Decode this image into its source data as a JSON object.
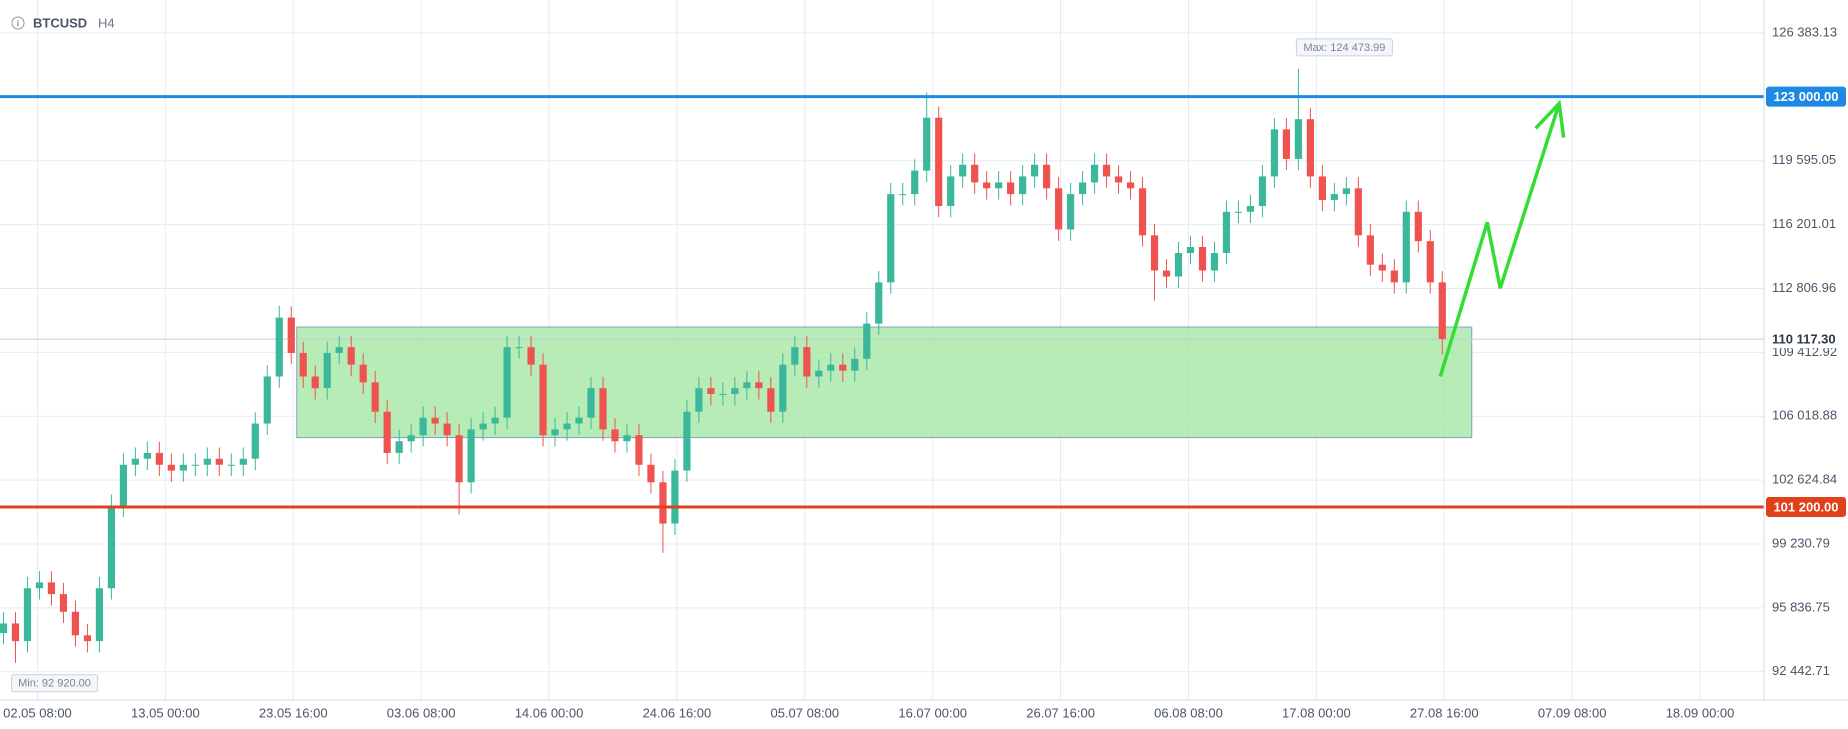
{
  "chart_data": {
    "type": "candlestick",
    "title": "BTCUSD",
    "timeframe": "H4",
    "up_color": "#3bb89b",
    "down_color": "#ef5350",
    "x": [
      "29.04 12:00",
      "30.04 12:00",
      "01.05 12:00",
      "02.05 12:00",
      "03.05 12:00",
      "04.05 12:00",
      "05.05 12:00",
      "06.05 12:00",
      "07.05 12:00",
      "08.05 12:00",
      "09.05 12:00",
      "10.05 12:00",
      "11.05 12:00",
      "12.05 12:00",
      "13.05 12:00",
      "14.05 12:00",
      "15.05 12:00",
      "16.05 12:00",
      "17.05 12:00",
      "18.05 12:00",
      "19.05 12:00",
      "20.05 12:00",
      "21.05 12:00",
      "22.05 12:00",
      "23.05 12:00",
      "24.05 12:00",
      "25.05 12:00",
      "26.05 12:00",
      "27.05 12:00",
      "28.05 12:00",
      "29.05 12:00",
      "30.05 12:00",
      "31.05 12:00",
      "01.06 12:00",
      "02.06 12:00",
      "03.06 12:00",
      "04.06 12:00",
      "05.06 12:00",
      "06.06 12:00",
      "07.06 12:00",
      "08.06 12:00",
      "09.06 12:00",
      "10.06 12:00",
      "11.06 12:00",
      "12.06 12:00",
      "13.06 12:00",
      "14.06 12:00",
      "15.06 12:00",
      "16.06 12:00",
      "17.06 12:00",
      "18.06 12:00",
      "19.06 12:00",
      "20.06 12:00",
      "21.06 12:00",
      "22.06 12:00",
      "23.06 12:00",
      "24.06 12:00",
      "25.06 12:00",
      "26.06 12:00",
      "27.06 12:00",
      "28.06 12:00",
      "29.06 12:00",
      "30.06 12:00",
      "01.07 12:00",
      "02.07 12:00",
      "03.07 12:00",
      "04.07 12:00",
      "05.07 12:00",
      "06.07 12:00",
      "07.07 12:00",
      "08.07 12:00",
      "09.07 12:00",
      "10.07 12:00",
      "11.07 12:00",
      "12.07 12:00",
      "13.07 12:00",
      "14.07 12:00",
      "15.07 12:00",
      "16.07 12:00",
      "17.07 12:00",
      "18.07 12:00",
      "19.07 12:00",
      "20.07 12:00",
      "21.07 12:00",
      "22.07 12:00",
      "23.07 12:00",
      "24.07 12:00",
      "25.07 12:00",
      "26.07 12:00",
      "27.07 12:00",
      "28.07 12:00",
      "29.07 12:00",
      "30.07 12:00",
      "31.07 12:00",
      "01.08 12:00",
      "02.08 12:00",
      "03.08 12:00",
      "04.08 12:00",
      "05.08 12:00",
      "06.08 12:00",
      "07.08 12:00",
      "08.08 12:00",
      "09.08 12:00",
      "10.08 12:00",
      "11.08 12:00",
      "12.08 12:00",
      "13.08 12:00",
      "14.08 12:00",
      "15.08 12:00",
      "16.08 12:00",
      "17.08 12:00",
      "18.08 12:00",
      "19.08 12:00",
      "20.08 12:00",
      "21.08 12:00",
      "22.08 12:00",
      "23.08 12:00",
      "24.08 12:00",
      "25.08 12:00",
      "26.08 12:00",
      "27.08 12:00"
    ],
    "open": [
      94500,
      95010,
      94070,
      96880,
      97190,
      96570,
      95630,
      94380,
      94070,
      96880,
      101260,
      103440,
      103760,
      104070,
      103440,
      103130,
      103440,
      103440,
      103760,
      103440,
      103440,
      103760,
      105630,
      108130,
      111260,
      109380,
      108130,
      107510,
      109380,
      109690,
      108760,
      107820,
      106260,
      104070,
      104690,
      105010,
      105940,
      105630,
      105010,
      102510,
      105320,
      105630,
      105940,
      109690,
      109690,
      108760,
      105010,
      105320,
      105630,
      105940,
      107510,
      105320,
      104690,
      105010,
      103440,
      102510,
      100320,
      103130,
      106260,
      107510,
      107200,
      107200,
      107510,
      107820,
      107510,
      106260,
      108760,
      109690,
      108130,
      108440,
      108760,
      108440,
      109070,
      110940,
      113130,
      117820,
      117820,
      119070,
      121880,
      117190,
      118760,
      119380,
      118440,
      118130,
      118440,
      117820,
      118760,
      119380,
      118130,
      115940,
      117820,
      118440,
      119380,
      118760,
      118440,
      118130,
      115630,
      113760,
      113440,
      114690,
      115010,
      113760,
      114690,
      116880,
      116880,
      117190,
      118760,
      121260,
      119690,
      121800,
      118760,
      117510,
      117820,
      118130,
      115630,
      114070,
      113760,
      113130,
      116880,
      115320,
      113130
    ],
    "high": [
      95610,
      95610,
      97480,
      97790,
      97790,
      97170,
      96230,
      94980,
      97480,
      101860,
      104040,
      104360,
      104670,
      104670,
      104040,
      104040,
      104040,
      104360,
      104360,
      104040,
      104360,
      106230,
      108730,
      111880,
      111860,
      109980,
      108730,
      109980,
      110290,
      110290,
      109360,
      108420,
      106860,
      105290,
      105610,
      106540,
      106540,
      106230,
      105610,
      105920,
      106230,
      106540,
      110290,
      110290,
      110290,
      109360,
      105920,
      106230,
      106540,
      108110,
      108110,
      105920,
      105610,
      105610,
      104040,
      103110,
      103730,
      106860,
      108110,
      108110,
      107800,
      108110,
      108420,
      108420,
      108110,
      109360,
      110290,
      110290,
      109040,
      109360,
      109360,
      109670,
      111540,
      113730,
      118420,
      118420,
      119670,
      123220,
      122480,
      119360,
      119980,
      119980,
      119040,
      119040,
      119040,
      119360,
      119980,
      119980,
      118730,
      118420,
      119040,
      119980,
      119980,
      119360,
      119040,
      118730,
      116230,
      114360,
      115290,
      115610,
      115610,
      115290,
      117480,
      117480,
      117790,
      119360,
      121860,
      121860,
      124473.99,
      122400,
      119360,
      118420,
      118730,
      118730,
      116230,
      114670,
      114360,
      117480,
      117480,
      115920,
      113730
    ],
    "low": [
      93900,
      92920,
      93470,
      96280,
      95970,
      95030,
      93780,
      93470,
      93470,
      96280,
      100660,
      102840,
      103160,
      102840,
      102530,
      102530,
      102840,
      102840,
      102840,
      102840,
      102840,
      103160,
      105030,
      107530,
      108780,
      107530,
      106910,
      106910,
      108780,
      108160,
      107220,
      105660,
      103470,
      103470,
      104090,
      104410,
      105030,
      104410,
      100800,
      101910,
      104720,
      105030,
      105340,
      109090,
      108160,
      104410,
      104410,
      104720,
      105030,
      105340,
      104720,
      104090,
      104090,
      102840,
      101910,
      98760,
      99720,
      102530,
      105660,
      106600,
      106600,
      106600,
      106910,
      106910,
      105660,
      105660,
      108160,
      107530,
      107530,
      107840,
      107840,
      107840,
      108470,
      110340,
      112530,
      117220,
      117220,
      118470,
      116590,
      116590,
      118160,
      117840,
      117530,
      117530,
      117220,
      117220,
      118160,
      117530,
      115340,
      115340,
      117220,
      117840,
      118160,
      117840,
      117530,
      115030,
      112160,
      112840,
      112840,
      114090,
      113160,
      113160,
      114090,
      116280,
      116280,
      116590,
      118160,
      119090,
      119090,
      118160,
      116910,
      116910,
      117220,
      115030,
      113470,
      113160,
      112530,
      112530,
      114720,
      112530,
      109300
    ],
    "close": [
      95010,
      94070,
      96880,
      97190,
      96570,
      95630,
      94380,
      94070,
      96880,
      101260,
      103440,
      103760,
      104070,
      103440,
      103130,
      103440,
      103440,
      103760,
      103440,
      103440,
      103760,
      105630,
      108130,
      111260,
      109380,
      108130,
      107510,
      109380,
      109690,
      108760,
      107820,
      106260,
      104070,
      104690,
      105010,
      105940,
      105630,
      105010,
      102510,
      105320,
      105630,
      105940,
      109690,
      109690,
      108760,
      105010,
      105320,
      105630,
      105940,
      107510,
      105320,
      104690,
      105010,
      103440,
      102510,
      100320,
      103130,
      106260,
      107510,
      107200,
      107200,
      107510,
      107820,
      107510,
      106260,
      108760,
      109690,
      108130,
      108440,
      108760,
      108440,
      109070,
      110940,
      113130,
      117820,
      117820,
      119070,
      121880,
      117190,
      118760,
      119380,
      118440,
      118130,
      118440,
      117820,
      118760,
      119380,
      118130,
      115940,
      117820,
      118440,
      119380,
      118760,
      118440,
      118130,
      115630,
      113760,
      113440,
      114690,
      115010,
      113760,
      114690,
      116880,
      116880,
      117190,
      118760,
      121260,
      119690,
      121800,
      118760,
      117510,
      117820,
      118130,
      115630,
      114070,
      113760,
      113130,
      116880,
      115320,
      113130,
      110117.3
    ],
    "xlim": [
      "29.04 05:00",
      "23.09 08:00"
    ],
    "xticks": [
      "02.05 08:00",
      "13.05 00:00",
      "23.05 16:00",
      "03.06 08:00",
      "14.06 00:00",
      "24.06 16:00",
      "05.07 08:00",
      "16.07 00:00",
      "26.07 16:00",
      "06.08 08:00",
      "17.08 00:00",
      "27.08 16:00",
      "07.09 08:00",
      "18.09 00:00"
    ],
    "ylim": [
      90943,
      128133
    ],
    "yticks": [
      {
        "value": 126383.13,
        "label": "126 383.13"
      },
      {
        "value": 119595.05,
        "label": "119 595.05"
      },
      {
        "value": 116201.01,
        "label": "116 201.01"
      },
      {
        "value": 112806.96,
        "label": "112 806.96"
      },
      {
        "value": 109412.92,
        "label": "109 412.92"
      },
      {
        "value": 106018.88,
        "label": "106 018.88"
      },
      {
        "value": 102624.84,
        "label": "102 624.84"
      },
      {
        "value": 99230.79,
        "label": "99 230.79"
      },
      {
        "value": 95836.75,
        "label": "95 836.75"
      },
      {
        "value": 92442.71,
        "label": "92 442.71"
      }
    ],
    "grid": true,
    "levels": [
      {
        "value": 123000,
        "label": "123 000.00",
        "color": "#1e88e5"
      },
      {
        "value": 101200,
        "label": "101 200.00",
        "color": "#e0401a"
      }
    ],
    "current_price": {
      "value": 110117.3,
      "label": "110 117.30"
    },
    "max_label": "Max: 124 473.99",
    "min_label": "Min: 92 920.00",
    "zone": {
      "x": [
        "23.05 23:00",
        "29.08 23:00"
      ],
      "y": [
        104883,
        110758
      ],
      "color": "#9de49a"
    },
    "arrow": {
      "x": [
        "27.08 08:00",
        "31.08 06:00",
        "01.09 08:00",
        "06.09 06:00"
      ],
      "y": [
        108133,
        116320,
        112820,
        122633
      ],
      "color": "#33dd33"
    },
    "arrow_head": {
      "x": [
        "04.09 07:00",
        "06.09 06:00",
        "06.09 15:00"
      ],
      "y": [
        121320,
        122633,
        120820
      ]
    }
  }
}
